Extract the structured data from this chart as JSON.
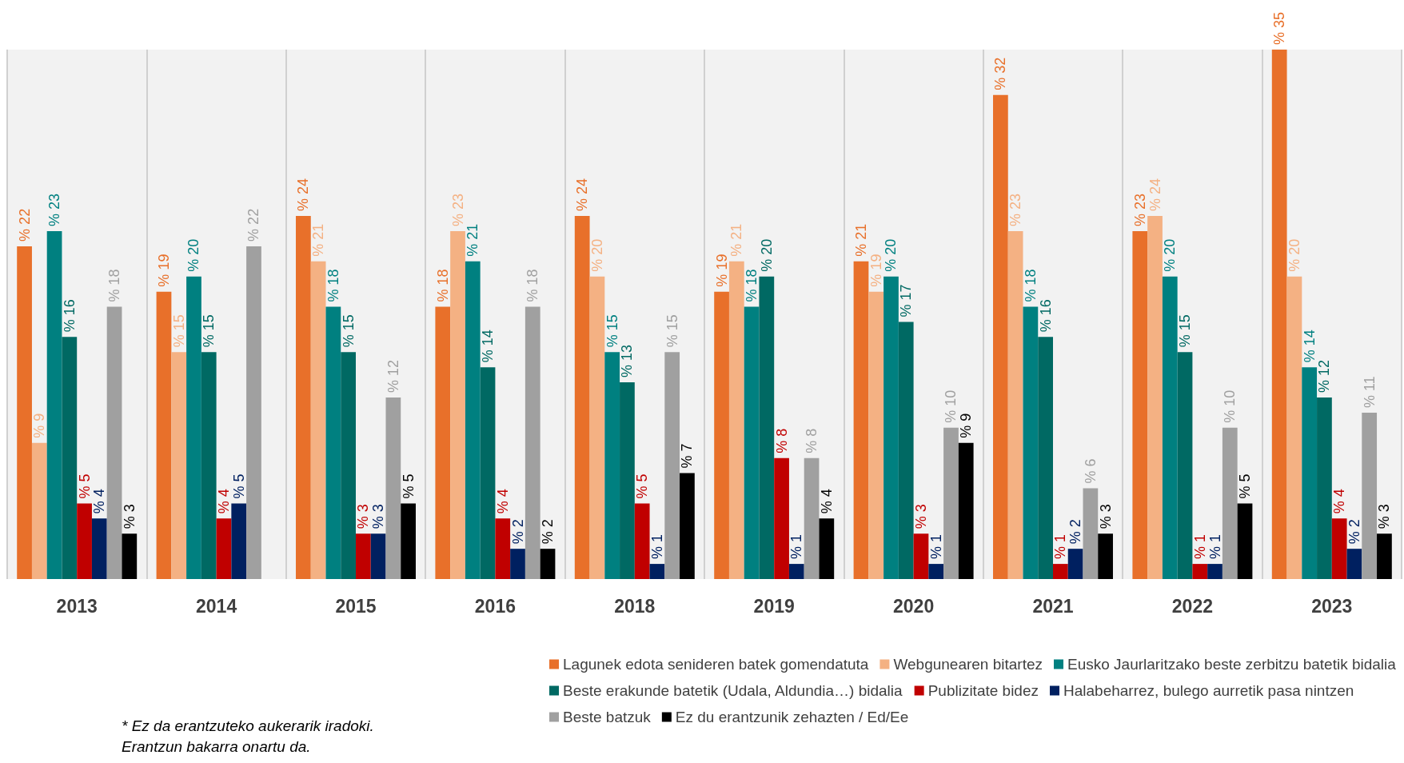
{
  "chart_data": {
    "type": "bar",
    "categories": [
      "2013",
      "2014",
      "2015",
      "2016",
      "2018",
      "2019",
      "2020",
      "2021",
      "2022",
      "2023"
    ],
    "series": [
      {
        "name": "Lagunek edota senideren batek gomendatuta",
        "color": "#e8702a",
        "values": [
          22,
          19,
          24,
          18,
          24,
          19,
          21,
          32,
          23,
          35
        ],
        "value_labels": [
          "% 22",
          "% 19",
          "% 24",
          "% 18",
          "% 24",
          "% 19",
          "% 21",
          "% 32",
          "% 23",
          "% 35"
        ]
      },
      {
        "name": "Webgunearen bitartez",
        "color": "#f4b183",
        "values": [
          9,
          15,
          21,
          23,
          20,
          21,
          19,
          23,
          24,
          20
        ],
        "value_labels": [
          "% 9",
          "% 15",
          "% 21",
          "% 23",
          "% 20",
          "% 21",
          "% 19",
          "% 23",
          "% 24",
          "% 20"
        ]
      },
      {
        "name": "Eusko Jaurlaritzako beste zerbitzu batetik bidalia",
        "color": "#008080",
        "values": [
          23,
          20,
          18,
          21,
          15,
          18,
          20,
          18,
          20,
          14
        ],
        "value_labels": [
          "% 23",
          "% 20",
          "% 18",
          "% 21",
          "% 15",
          "% 18",
          "% 20",
          "% 18",
          "% 20",
          "% 14"
        ]
      },
      {
        "name": "Beste erakunde batetik (Udala, Aldundia…) bidalia",
        "color": "#006963",
        "values": [
          16,
          15,
          15,
          14,
          13,
          20,
          17,
          16,
          15,
          12
        ],
        "value_labels": [
          "% 16",
          "% 15",
          "% 15",
          "% 14",
          "% 13",
          "% 20",
          "% 17",
          "% 16",
          "% 15",
          "% 12"
        ]
      },
      {
        "name": "Publizitate bidez",
        "color": "#c00000",
        "values": [
          5,
          4,
          3,
          4,
          5,
          8,
          3,
          1,
          1,
          4
        ],
        "value_labels": [
          "% 5",
          "% 4",
          "% 3",
          "% 4",
          "% 5",
          "% 8",
          "% 3",
          "% 1",
          "% 1",
          "% 4"
        ]
      },
      {
        "name": "Halabeharrez, bulego aurretik pasa nintzen",
        "color": "#002060",
        "values": [
          4,
          5,
          3,
          2,
          1,
          1,
          1,
          2,
          1,
          2
        ],
        "value_labels": [
          "% 4",
          "% 5",
          "% 3",
          "% 2",
          "% 1",
          "% 1",
          "% 1",
          "% 2",
          "% 1",
          "% 2"
        ]
      },
      {
        "name": "Beste batzuk",
        "color": "#a0a0a0",
        "values": [
          18,
          22,
          12,
          18,
          15,
          8,
          10,
          6,
          10,
          11
        ],
        "value_labels": [
          "% 18",
          "% 22",
          "% 12",
          "% 18",
          "% 15",
          "% 8",
          "% 10",
          "% 6",
          "% 10",
          "% 11"
        ]
      },
      {
        "name": "Ez du erantzunik zehazten / Ed/Ee",
        "color": "#000000",
        "values": [
          3,
          null,
          5,
          2,
          7,
          4,
          9,
          3,
          5,
          3
        ],
        "value_labels": [
          "% 3",
          null,
          "% 5",
          "% 2",
          "% 7",
          "% 4",
          "% 9",
          "% 3",
          "% 5",
          "% 3"
        ]
      }
    ],
    "grid": "x",
    "legend": "bottom right",
    "annotations": [
      "* Ez da erantzuteko aukerarik iradoki.",
      "Erantzun bakarra onartu da."
    ]
  }
}
